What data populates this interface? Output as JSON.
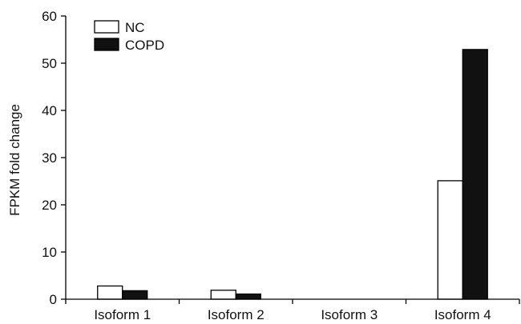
{
  "chart_data": {
    "type": "bar",
    "categories": [
      "Isoform 1",
      "Isoform 2",
      "Isoform 3",
      "Isoform 4"
    ],
    "series": [
      {
        "name": "NC",
        "values": [
          2.8,
          1.9,
          0,
          25.1
        ],
        "fill": "#ffffff",
        "stroke": "#000000"
      },
      {
        "name": "COPD",
        "values": [
          1.8,
          1.1,
          0,
          52.9
        ],
        "fill": "#111111",
        "stroke": "#000000"
      }
    ],
    "ylabel": "FPKM fold change",
    "ylim": [
      0,
      60
    ],
    "yticks": [
      "0",
      "10",
      "20",
      "30",
      "40",
      "50",
      "60"
    ],
    "grid": false,
    "legend": "top-left"
  }
}
